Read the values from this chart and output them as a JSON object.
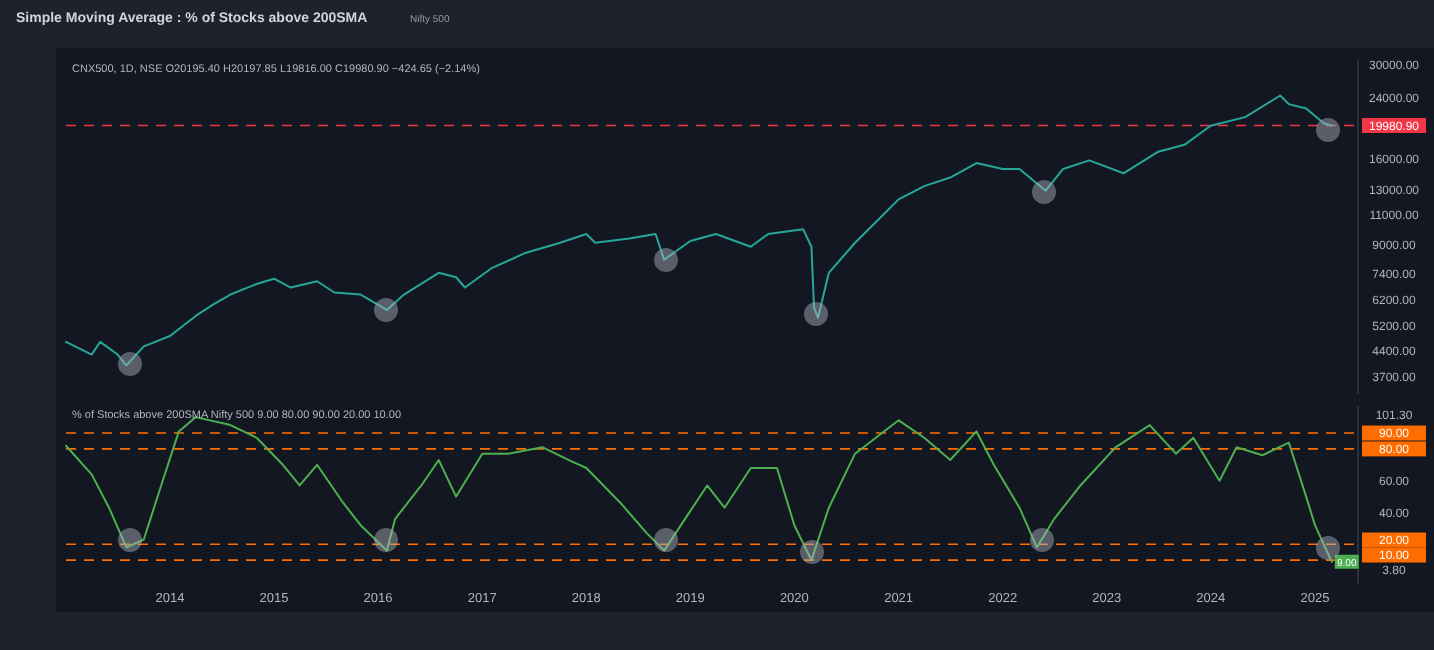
{
  "chart_data": [
    {
      "type": "line",
      "title": "Simple Moving Average : % of Stocks above 200SMA",
      "subtitle": "Nifty 500",
      "annotations": [
        "CNX500, 1D, NSE O20195.40 H20197.85 L19816.00 C19980.90 −424.65 (−2.14%)"
      ],
      "series": [
        {
          "color": "#26a69a",
          "x": [
            "2013-01",
            "2013-04",
            "2013-05",
            "2013-07",
            "2013-08",
            "2013-10",
            "2014-01",
            "2014-04",
            "2014-06",
            "2014-08",
            "2014-11",
            "2015-01",
            "2015-03",
            "2015-06",
            "2015-08",
            "2015-11",
            "2016-02",
            "2016-04",
            "2016-08",
            "2016-10",
            "2016-11",
            "2017-02",
            "2017-06",
            "2017-10",
            "2018-01",
            "2018-02",
            "2018-06",
            "2018-09",
            "2018-10",
            "2019-01",
            "2019-04",
            "2019-08",
            "2019-10",
            "2020-02",
            "2020-03-01",
            "2020-03-10",
            "2020-03-24",
            "2020-05",
            "2020-08",
            "2020-11",
            "2021-01",
            "2021-04",
            "2021-07",
            "2021-10",
            "2022-01",
            "2022-03",
            "2022-06",
            "2022-08",
            "2022-11",
            "2023-03",
            "2023-07",
            "2023-10",
            "2024-01",
            "2024-05",
            "2024-09",
            "2024-10",
            "2024-12",
            "2025-02",
            "2025-03"
          ],
          "values": [
            4680,
            4300,
            4680,
            4300,
            4000,
            4540,
            4870,
            5570,
            6010,
            6430,
            6900,
            7150,
            6740,
            7030,
            6520,
            6430,
            5800,
            6430,
            7440,
            7220,
            6740,
            7660,
            8500,
            9100,
            9650,
            9100,
            9370,
            9650,
            8120,
            9210,
            9650,
            8860,
            9650,
            9960,
            8860,
            5900,
            5500,
            7440,
            9100,
            10840,
            12170,
            13300,
            14090,
            15530,
            14930,
            14930,
            12900,
            14930,
            15810,
            14500,
            16760,
            17550,
            19950,
            21130,
            24430,
            23060,
            22390,
            20280,
            19980.9
          ]
        }
      ],
      "xlim": [
        "2013-01",
        "2025-06"
      ],
      "ylim": [
        3300,
        31000
      ],
      "log": true,
      "yticks": [
        {
          "value": 3700,
          "label": "3700.00"
        },
        {
          "value": 4400,
          "label": "4400.00"
        },
        {
          "value": 5200,
          "label": "5200.00"
        },
        {
          "value": 6200,
          "label": "6200.00"
        },
        {
          "value": 7400,
          "label": "7400.00"
        },
        {
          "value": 9000,
          "label": "9000.00"
        },
        {
          "value": 11000,
          "label": "11000.00"
        },
        {
          "value": 13000,
          "label": "13000.00"
        },
        {
          "value": 16000,
          "label": "16000.00"
        },
        {
          "value": 24000,
          "label": "24000.00"
        },
        {
          "value": 30000,
          "label": "30000.00"
        }
      ],
      "tick_labels": "y",
      "line_style": "solid",
      "ref_lines": [
        {
          "axis": "y",
          "value": 19980.9,
          "label": "19980.90",
          "color": "#f23645",
          "line_style": "dashed"
        }
      ]
    },
    {
      "type": "line",
      "annotations": [
        "% of Stocks above 200SMA Nifty 500 9.00 80.00 90.00 20.00 10.00",
        {
          "text": "9.00",
          "x": "2025-03",
          "y": 9
        }
      ],
      "series": [
        {
          "color": "#4caf50",
          "x": [
            "2013-01",
            "2013-04",
            "2013-06",
            "2013-08",
            "2013-10",
            "2013-12",
            "2014-02",
            "2014-04",
            "2014-08",
            "2014-11",
            "2015-02",
            "2015-04",
            "2015-06",
            "2015-09",
            "2015-11",
            "2016-02",
            "2016-03",
            "2016-06",
            "2016-08",
            "2016-10",
            "2017-01",
            "2017-04",
            "2017-08",
            "2017-11",
            "2018-01",
            "2018-05",
            "2018-08",
            "2018-10",
            "2019-01",
            "2019-03",
            "2019-05",
            "2019-08",
            "2019-11",
            "2020-01",
            "2020-03",
            "2020-05",
            "2020-08",
            "2021-01",
            "2021-04",
            "2021-07",
            "2021-10",
            "2021-12",
            "2022-03",
            "2022-05",
            "2022-07",
            "2022-10",
            "2023-02",
            "2023-06",
            "2023-09",
            "2023-11",
            "2024-02",
            "2024-04",
            "2024-07",
            "2024-10",
            "2024-12",
            "2025-01",
            "2025-03"
          ],
          "values": [
            82,
            64,
            43,
            18,
            23,
            57,
            91,
            100,
            95,
            87,
            70,
            57,
            70,
            46,
            32,
            16,
            36,
            57,
            73,
            50,
            77,
            77,
            81,
            73,
            68,
            46,
            27,
            16,
            41,
            57,
            43,
            68,
            68,
            32,
            10,
            43,
            77,
            98,
            87,
            73,
            91,
            70,
            43,
            18,
            36,
            57,
            81,
            95,
            77,
            87,
            60,
            81,
            76,
            84,
            50,
            32,
            9
          ]
        }
      ],
      "xlim": [
        "2013-01",
        "2025-06"
      ],
      "ylim": [
        -5,
        107
      ],
      "xticks": [
        "2014",
        "2015",
        "2016",
        "2017",
        "2018",
        "2019",
        "2020",
        "2021",
        "2022",
        "2023",
        "2024",
        "2025"
      ],
      "yticks": [
        {
          "value": 3.8,
          "label": "3.80"
        },
        {
          "value": 40,
          "label": "40.00"
        },
        {
          "value": 60,
          "label": "60.00"
        },
        {
          "value": 101.3,
          "label": "101.30"
        }
      ],
      "line_style": "solid",
      "ref_lines": [
        {
          "axis": "y",
          "value": 90,
          "label": "90.00",
          "color": "#ff6d00",
          "line_style": "dashed"
        },
        {
          "axis": "y",
          "value": 80,
          "label": "80.00",
          "color": "#ff6d00",
          "line_style": "dashed"
        },
        {
          "axis": "y",
          "value": 20,
          "label": "20.00",
          "color": "#ff6d00",
          "line_style": "dashed"
        },
        {
          "axis": "y",
          "value": 10,
          "label": "10.00",
          "color": "#ff6d00",
          "line_style": "dashed"
        }
      ]
    }
  ]
}
